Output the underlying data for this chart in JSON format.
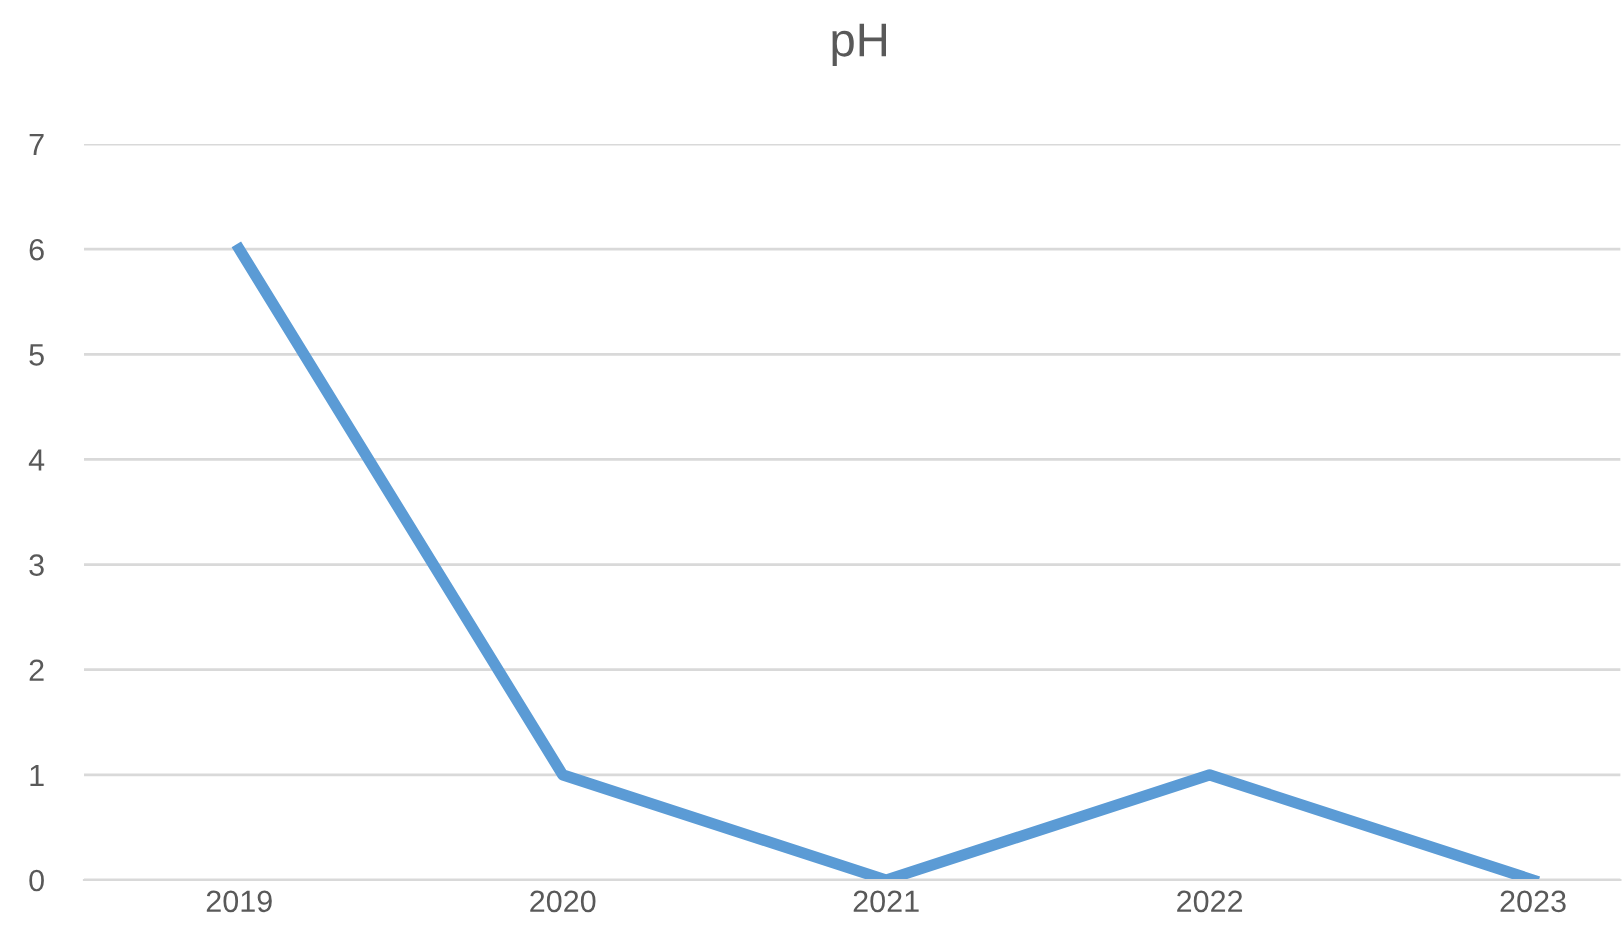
{
  "chart_data": {
    "type": "line",
    "title": "pH",
    "categories": [
      "2019",
      "2020",
      "2021",
      "2022",
      "2023"
    ],
    "series": [
      {
        "color": "#5b9bd5",
        "values": [
          6,
          1,
          0,
          1,
          0
        ]
      }
    ],
    "ylim": [
      0,
      7
    ],
    "yticks": [
      0,
      1,
      2,
      3,
      4,
      5,
      6,
      7
    ],
    "grid": "y",
    "legend": false,
    "marker": "none",
    "line_style": "solid"
  }
}
